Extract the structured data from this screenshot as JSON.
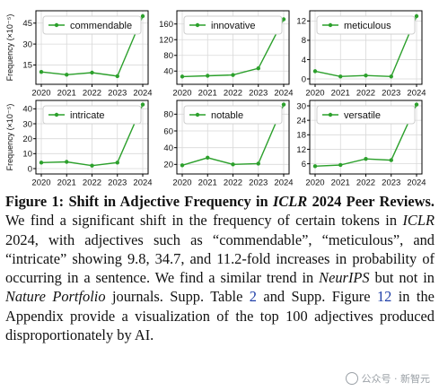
{
  "chart_data": [
    {
      "type": "line",
      "x": [
        2020,
        2021,
        2022,
        2023,
        2024
      ],
      "series": [
        {
          "name": "commendable",
          "values": [
            10,
            8,
            9.5,
            7,
            50
          ]
        }
      ],
      "ylabel": "Frequency (×10⁻⁵)",
      "ylim": [
        5,
        50
      ],
      "yticks": [
        15,
        30,
        45
      ],
      "grid": true,
      "legend": "top"
    },
    {
      "type": "line",
      "x": [
        2020,
        2021,
        2022,
        2023,
        2024
      ],
      "series": [
        {
          "name": "innovative",
          "values": [
            26,
            28,
            30,
            47,
            172
          ]
        }
      ],
      "ylabel": "",
      "ylim": [
        20,
        180
      ],
      "yticks": [
        40,
        80,
        120,
        160
      ],
      "grid": true,
      "legend": "top"
    },
    {
      "type": "line",
      "x": [
        2020,
        2021,
        2022,
        2023,
        2024
      ],
      "series": [
        {
          "name": "meticulous",
          "values": [
            1.6,
            0.5,
            0.7,
            0.5,
            13
          ]
        }
      ],
      "ylabel": "",
      "ylim": [
        0,
        13
      ],
      "yticks": [
        0,
        4,
        8,
        12
      ],
      "grid": true,
      "legend": "top"
    },
    {
      "type": "line",
      "x": [
        2020,
        2021,
        2022,
        2023,
        2024
      ],
      "series": [
        {
          "name": "intricate",
          "values": [
            4,
            4.5,
            2,
            4,
            43
          ]
        }
      ],
      "ylabel": "Frequency (×10⁻⁵)",
      "ylim": [
        0,
        42
      ],
      "yticks": [
        0,
        10,
        20,
        30,
        40
      ],
      "grid": true,
      "legend": "top"
    },
    {
      "type": "line",
      "x": [
        2020,
        2021,
        2022,
        2023,
        2024
      ],
      "series": [
        {
          "name": "notable",
          "values": [
            19,
            28,
            20,
            21,
            92
          ]
        }
      ],
      "ylabel": "",
      "ylim": [
        15,
        90
      ],
      "yticks": [
        20,
        40,
        60,
        80
      ],
      "grid": true,
      "legend": "top"
    },
    {
      "type": "line",
      "x": [
        2020,
        2021,
        2022,
        2023,
        2024
      ],
      "series": [
        {
          "name": "versatile",
          "values": [
            5,
            5.5,
            8,
            7.5,
            31
          ]
        }
      ],
      "ylabel": "",
      "ylim": [
        4,
        30
      ],
      "yticks": [
        6,
        12,
        18,
        24,
        30
      ],
      "grid": true,
      "legend": "top"
    }
  ],
  "style": {
    "line_color": "#2ca02c"
  },
  "caption": {
    "label": "Figure 1:",
    "title_a": "Shift in Adjective Frequency in",
    "title_venue": "ICLR",
    "title_b": "2024 Peer Reviews.",
    "t1": "We find a significant shift in the frequency of certain tokens in",
    "venue1": "ICLR",
    "t2": "2024, with adjectives such as “commendable”, “meticulous”, and “intricate” showing 9.8, 34.7, and 11.2-fold increases in probability of occurring in a sentence. We find a similar trend in",
    "venue2": "NeurIPS",
    "t3": "but not in",
    "venue3": "Nature Portfolio",
    "t4": "journals. Supp. Table",
    "ref1": "2",
    "t5": "and Supp. Figure",
    "ref2": "12",
    "t6": "in the Appendix provide a visualization of the top 100 adjectives produced disproportionately by AI."
  },
  "watermark": {
    "text": "公众号 · 新智元"
  }
}
